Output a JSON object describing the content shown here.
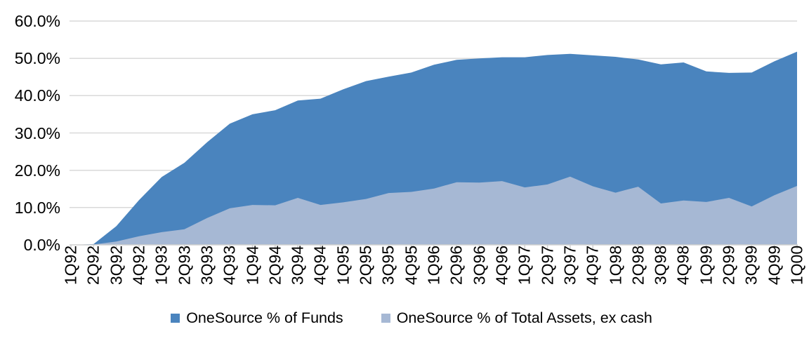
{
  "chart_data": {
    "type": "area",
    "title": "",
    "xlabel": "",
    "ylabel": "",
    "ylim": [
      0,
      60
    ],
    "grid": true,
    "legend_position": "bottom",
    "y_tick_labels": [
      "0.0%",
      "10.0%",
      "20.0%",
      "30.0%",
      "40.0%",
      "50.0%",
      "60.0%"
    ],
    "categories": [
      "1Q92",
      "2Q92",
      "3Q92",
      "4Q92",
      "1Q93",
      "2Q93",
      "3Q93",
      "4Q93",
      "1Q94",
      "2Q94",
      "3Q94",
      "4Q94",
      "1Q95",
      "2Q95",
      "3Q95",
      "4Q95",
      "1Q96",
      "2Q96",
      "3Q96",
      "4Q96",
      "1Q97",
      "2Q97",
      "3Q97",
      "4Q97",
      "1Q98",
      "2Q98",
      "3Q98",
      "4Q98",
      "1Q99",
      "2Q99",
      "3Q99",
      "4Q99",
      "1Q00"
    ],
    "series": [
      {
        "name": "OneSource % of Funds",
        "color": "#4A84BE",
        "values": [
          0.0,
          0.2,
          5.0,
          12.0,
          18.2,
          22.0,
          27.5,
          32.5,
          35.0,
          36.1,
          38.7,
          39.2,
          41.7,
          43.9,
          45.1,
          46.2,
          48.3,
          49.6,
          50.0,
          50.3,
          50.3,
          50.9,
          51.2,
          50.8,
          50.4,
          49.7,
          48.4,
          48.9,
          46.5,
          46.1,
          46.2,
          49.2,
          51.8
        ]
      },
      {
        "name": "OneSource % of Total Assets, ex cash",
        "color": "#A6B8D4",
        "values": [
          0.0,
          0.1,
          0.9,
          2.3,
          3.4,
          4.2,
          7.2,
          9.8,
          10.7,
          10.6,
          12.6,
          10.7,
          11.4,
          12.3,
          13.9,
          14.2,
          15.1,
          16.8,
          16.7,
          17.1,
          15.4,
          16.2,
          18.3,
          15.7,
          14.0,
          15.6,
          11.1,
          11.9,
          11.5,
          12.6,
          10.3,
          13.3,
          15.8
        ]
      }
    ],
    "axis_color": "#CFCFCF",
    "gridline_color": "#D9D9D9"
  }
}
